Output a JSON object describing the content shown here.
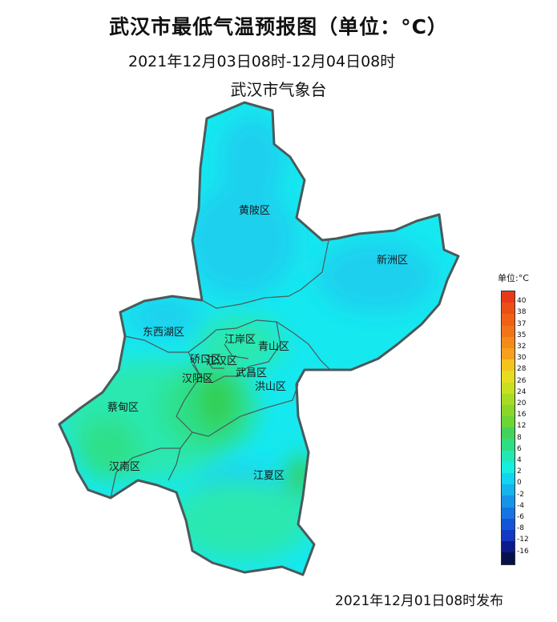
{
  "header": {
    "title": "武汉市最低气温预报图（单位：°C）",
    "period": "2021年12月03日08时-12月04日08时",
    "agency": "武汉市气象台"
  },
  "footer": {
    "issued": "2021年12月01日08时发布"
  },
  "map": {
    "districts": [
      {
        "id": "huangpi",
        "name": "黄陂区"
      },
      {
        "id": "xinzhou",
        "name": "新洲区"
      },
      {
        "id": "dongxihu",
        "name": "东西湖区"
      },
      {
        "id": "jiangan",
        "name": "江岸区"
      },
      {
        "id": "qingshan",
        "name": "青山区"
      },
      {
        "id": "qiaokou",
        "name": "硚口区"
      },
      {
        "id": "jianghan",
        "name": "江汉区"
      },
      {
        "id": "hanyang",
        "name": "汉阳区"
      },
      {
        "id": "wuchang",
        "name": "武昌区"
      },
      {
        "id": "hongshan",
        "name": "洪山区"
      },
      {
        "id": "caidian",
        "name": "蔡甸区"
      },
      {
        "id": "hannan",
        "name": "汉南区"
      },
      {
        "id": "jiangxia",
        "name": "江夏区"
      }
    ],
    "colors": {
      "cyan": "#16e8f0",
      "sky": "#1ad0ee",
      "seafoam": "#2ae8b0",
      "green": "#2de08a",
      "deep_green": "#33cf55",
      "boundary": "#4a5a5a"
    }
  },
  "legend": {
    "title": "单位:°C",
    "items": [
      {
        "label": "40",
        "color": "#e83a1a"
      },
      {
        "label": "38",
        "color": "#ec4e18"
      },
      {
        "label": "37",
        "color": "#f06016"
      },
      {
        "label": "35",
        "color": "#f27418"
      },
      {
        "label": "32",
        "color": "#f48a1a"
      },
      {
        "label": "30",
        "color": "#f6a01c"
      },
      {
        "label": "28",
        "color": "#f4c41e"
      },
      {
        "label": "26",
        "color": "#e6dc20"
      },
      {
        "label": "24",
        "color": "#c8e020"
      },
      {
        "label": "20",
        "color": "#a8dc24"
      },
      {
        "label": "16",
        "color": "#8ad62a"
      },
      {
        "label": "12",
        "color": "#6cd634"
      },
      {
        "label": "8",
        "color": "#44d25a"
      },
      {
        "label": "6",
        "color": "#2ede84"
      },
      {
        "label": "4",
        "color": "#22e8b4"
      },
      {
        "label": "2",
        "color": "#18eede"
      },
      {
        "label": "0",
        "color": "#12d4f0"
      },
      {
        "label": "-2",
        "color": "#14b4ec"
      },
      {
        "label": "-4",
        "color": "#1694e8"
      },
      {
        "label": "-6",
        "color": "#1674e2"
      },
      {
        "label": "-8",
        "color": "#1454d8"
      },
      {
        "label": "-12",
        "color": "#1238c4"
      },
      {
        "label": "-16",
        "color": "#0c1a8c"
      },
      {
        "label": "",
        "color": "#08104a"
      }
    ]
  }
}
